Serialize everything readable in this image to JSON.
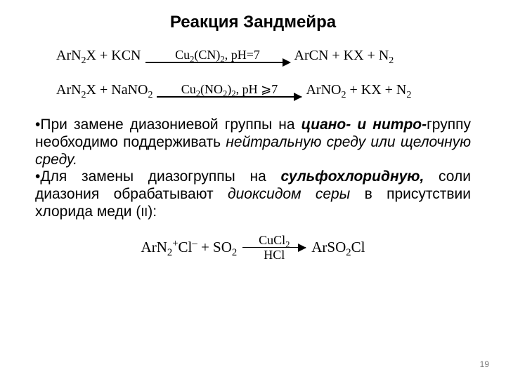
{
  "title": "Реакция Зандмейра",
  "eq1": {
    "left": "ArN₂X + KCN",
    "condTop": "Cu₂(CN)₂, pH=7",
    "right": "ArCN + KX + N₂",
    "arrowWidth": 206
  },
  "eq2": {
    "left": "ArN₂X + NaNO₂",
    "condTop": "Cu₂(NO₂)₂, pH ⩾7",
    "right": "ArNO₂ + KX + N₂",
    "arrowWidth": 206
  },
  "para1": {
    "t1": "•При замене диазониевой группы на ",
    "t2": "циано- и нитро-",
    "t3": "группу необходимо поддерживать ",
    "t4": "нейтральную среду или щелочную среду."
  },
  "para2": {
    "t1": "•Для замены диазогруппы на ",
    "t2": "сульфохлоридную,",
    "t3": " соли диазония обрабатывают ",
    "t4": "диоксидом серы",
    "t5": " в присутствии хлорида меди (",
    "t6": "II",
    "t7": "):"
  },
  "eq3": {
    "left_html": "ArN₂⁺Cl⁻ + SO₂",
    "top": "CuCl₂",
    "bottom": "HCl",
    "right": "ArSO₂Cl",
    "arrowWidth": 90
  },
  "pageNumber": "19",
  "colors": {
    "background": "#ffffff",
    "text": "#000000",
    "pagenum": "#7a7a7a"
  },
  "typography": {
    "titleSize": 24,
    "bodySize": 21,
    "eqSize": 20,
    "eqFamily": "Times New Roman",
    "bodyFamily": "Arial"
  }
}
